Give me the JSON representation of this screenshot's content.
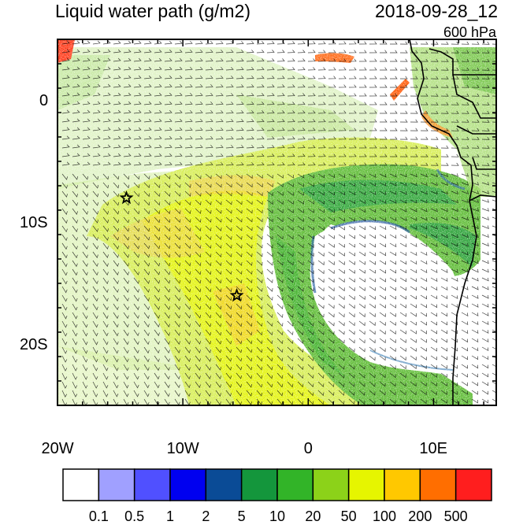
{
  "title": "Liquid water path (g/m2)",
  "datetime": "2018-09-28_12",
  "level": "600 hPa",
  "map": {
    "lon_range": [
      -20,
      15
    ],
    "lat_range": [
      -25,
      5
    ],
    "lon_ticks": [
      {
        "lon": -20,
        "label": "20W"
      },
      {
        "lon": -10,
        "label": "10W"
      },
      {
        "lon": 0,
        "label": "0"
      },
      {
        "lon": 10,
        "label": "10E"
      }
    ],
    "lat_ticks": [
      {
        "lat": 0,
        "label": "0"
      },
      {
        "lat": -10,
        "label": "10S"
      },
      {
        "lat": -20,
        "label": "20S"
      }
    ],
    "markers": [
      {
        "name": "star-marker-northwest",
        "lon": -14.5,
        "lat": -8
      },
      {
        "name": "star-marker-south",
        "lon": -5.7,
        "lat": -16
      }
    ]
  },
  "colorbar": {
    "colors": [
      "#ffffff",
      "#a0a0ff",
      "#5050ff",
      "#0000f0",
      "#0a4b96",
      "#14963c",
      "#32b428",
      "#8cd219",
      "#e6f500",
      "#ffc800",
      "#ff6e00",
      "#ff1e1e"
    ],
    "labels": [
      "0.1",
      "0.5",
      "1",
      "2",
      "5",
      "10",
      "20",
      "50",
      "100",
      "200",
      "500"
    ]
  }
}
